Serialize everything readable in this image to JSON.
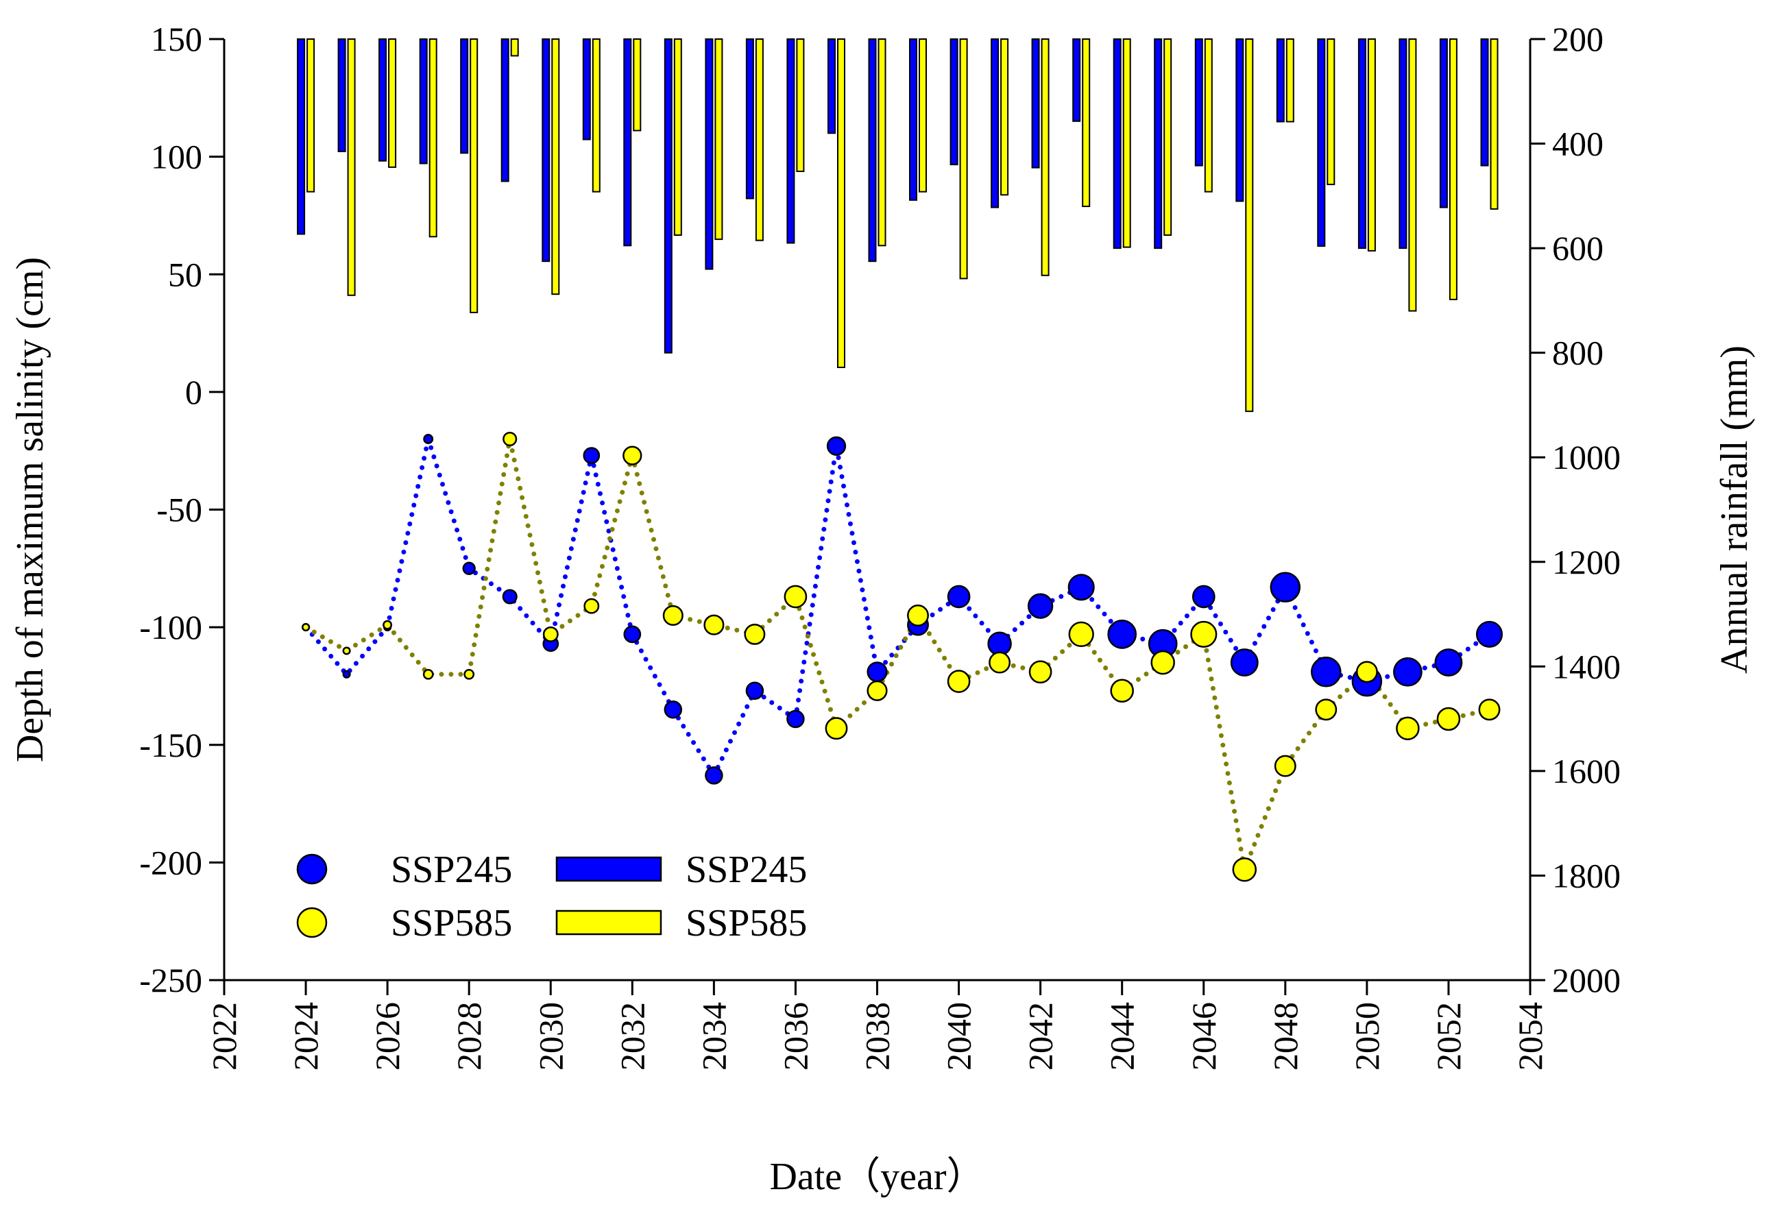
{
  "chart_data": {
    "type": "bar+scatter",
    "xlabel": "Date（year）",
    "ylabel_left": "Depth of maximum salinity (cm)",
    "ylabel_right": "Annual rainfall (mm)",
    "xlim": [
      2022,
      2054
    ],
    "xticks": [
      "2022",
      "2024",
      "2026",
      "2028",
      "2030",
      "2032",
      "2034",
      "2036",
      "2038",
      "2040",
      "2042",
      "2044",
      "2046",
      "2048",
      "2050",
      "2052",
      "2054"
    ],
    "ylim_left": [
      -250,
      150
    ],
    "yticks_left": [
      "150",
      "100",
      "50",
      "0",
      "-50",
      "-100",
      "-150",
      "-200",
      "-250"
    ],
    "ylim_right": [
      200,
      2000
    ],
    "right_axis_inverted": true,
    "yticks_right": [
      "200",
      "400",
      "600",
      "800",
      "1000",
      "1200",
      "1400",
      "1600",
      "1800",
      "2000"
    ],
    "years": [
      2024,
      2025,
      2026,
      2027,
      2028,
      2029,
      2030,
      2031,
      2032,
      2033,
      2034,
      2035,
      2036,
      2037,
      2038,
      2039,
      2040,
      2041,
      2042,
      2043,
      2044,
      2045,
      2046,
      2047,
      2048,
      2049,
      2050,
      2051,
      2052,
      2053
    ],
    "rainfall_series": [
      {
        "name": "SSP245",
        "color": "#0000ff",
        "values": [
          573,
          415,
          433,
          438,
          418,
          472,
          625,
          392,
          595,
          800,
          640,
          505,
          590,
          380,
          625,
          508,
          440,
          522,
          446,
          357,
          600,
          600,
          442,
          510,
          358,
          596,
          600,
          600,
          522,
          442
        ]
      },
      {
        "name": "SSP585",
        "color": "#ffff00",
        "values": [
          492,
          690,
          445,
          578,
          723,
          232,
          688,
          492,
          375,
          575,
          583,
          585,
          453,
          828,
          595,
          492,
          658,
          498,
          652,
          520,
          598,
          575,
          492,
          912,
          358,
          478,
          605,
          720,
          698,
          525
        ]
      }
    ],
    "depth_series": [
      {
        "name": "SSP245",
        "color": "#0000ff",
        "line_color": "#0000ff",
        "values": [
          -100,
          -120,
          -100,
          -20,
          -75,
          -87,
          -107,
          -27,
          -103,
          -135,
          -163,
          -127,
          -139,
          -23,
          -119,
          -99,
          -87,
          -107,
          -91,
          -83,
          -103,
          -107,
          -87,
          -115,
          -83,
          -119,
          -123,
          -119,
          -115,
          -103
        ],
        "sizes": [
          0.1,
          0.1,
          0.1,
          0.18,
          0.3,
          0.38,
          0.42,
          0.45,
          0.48,
          0.5,
          0.5,
          0.5,
          0.5,
          0.55,
          0.6,
          0.65,
          0.7,
          0.75,
          0.8,
          0.85,
          0.95,
          0.95,
          0.7,
          0.9,
          1.0,
          1.0,
          1.0,
          0.95,
          0.9,
          0.85
        ]
      },
      {
        "name": "SSP585",
        "color": "#ffff00",
        "line_color": "#808000",
        "values": [
          -100,
          -110,
          -99,
          -120,
          -120,
          -20,
          -103,
          -91,
          -27,
          -95,
          -99,
          -103,
          -87,
          -143,
          -127,
          -95,
          -123,
          -115,
          -119,
          -103,
          -127,
          -115,
          -103,
          -203,
          -159,
          -135,
          -119,
          -143,
          -139,
          -135
        ],
        "sizes": [
          0.1,
          0.1,
          0.15,
          0.2,
          0.2,
          0.35,
          0.4,
          0.4,
          0.55,
          0.6,
          0.6,
          0.62,
          0.7,
          0.68,
          0.6,
          0.65,
          0.7,
          0.65,
          0.7,
          0.8,
          0.72,
          0.75,
          0.85,
          0.75,
          0.65,
          0.65,
          0.65,
          0.72,
          0.72,
          0.65
        ]
      }
    ],
    "legend": {
      "entries": [
        {
          "kind": "circle",
          "label": "SSP245",
          "color": "#0000ff"
        },
        {
          "kind": "circle",
          "label": "SSP585",
          "color": "#ffff00"
        },
        {
          "kind": "bar",
          "label": "SSP245",
          "color": "#0000ff"
        },
        {
          "kind": "bar",
          "label": "SSP585",
          "color": "#ffff00"
        }
      ],
      "placement": "bottom-left"
    },
    "grid": false
  }
}
